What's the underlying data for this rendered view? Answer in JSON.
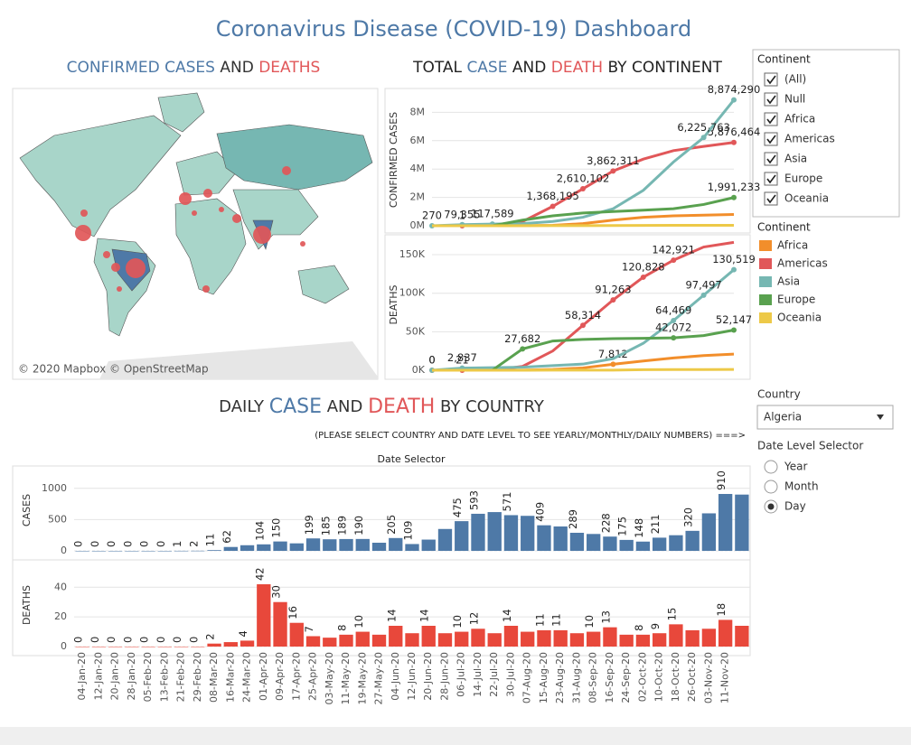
{
  "title": "Coronavirus Disease (COVID-19) Dashboard",
  "map": {
    "title": [
      {
        "text": "CONFIRMED CASES",
        "color": "#4e79a7"
      },
      {
        "text": "AND",
        "color": "#333333"
      },
      {
        "text": "DEATHS",
        "color": "#e15759"
      }
    ],
    "attribution": "© 2020 Mapbox © OpenStreetMap"
  },
  "continent_title": [
    {
      "text": "TOTAL",
      "color": "#222222"
    },
    {
      "text": "CASE",
      "color": "#4e79a7"
    },
    {
      "text": "AND",
      "color": "#222222"
    },
    {
      "text": "DEATH",
      "color": "#e15759"
    },
    {
      "text": "BY CONTINENT",
      "color": "#222222"
    }
  ],
  "country_title": [
    {
      "text": "DAILY",
      "color": "#333333"
    },
    {
      "text": "CASE",
      "color": "#4e79a7"
    },
    {
      "text": "AND",
      "color": "#333333"
    },
    {
      "text": "DEATH",
      "color": "#e15759"
    },
    {
      "text": "BY COUNTRY",
      "color": "#333333"
    }
  ],
  "instruction": "(PLEASE SELECT COUNTRY AND DATE LEVEL TO SEE YEARLY/MONTHLY/DAILY NUMBERS) ===>",
  "date_selector": "Date Selector",
  "chart_data": [
    {
      "type": "line",
      "y_label": "CONFIRMED CASES",
      "categories": [
        null,
        null,
        null,
        null,
        null,
        null,
        null,
        null,
        null,
        null,
        null
      ],
      "ylim": [
        0,
        9300000
      ],
      "yticks": [
        {
          "value": 0,
          "label": "0M"
        },
        {
          "value": 2000000,
          "label": "2M"
        },
        {
          "value": 4000000,
          "label": "4M"
        },
        {
          "value": 6000000,
          "label": "6M"
        },
        {
          "value": 8000000,
          "label": "8M"
        }
      ],
      "grid": true,
      "series": [
        {
          "name": "Africa",
          "color": "#f28e2b",
          "values": [
            0,
            0,
            0,
            5000,
            30000,
            150000,
            400000,
            600000,
            700000,
            750000,
            800000
          ],
          "value_labels": [
            null,
            null,
            null,
            null,
            null,
            null,
            null,
            null,
            null,
            null,
            null
          ]
        },
        {
          "name": "Americas",
          "color": "#e15759",
          "values": [
            0,
            1,
            20000,
            300000,
            1368195,
            2610102,
            3862311,
            4700000,
            5300000,
            5600000,
            5876464
          ],
          "value_labels": [
            null,
            "1",
            null,
            null,
            "1,368,195",
            "2,610,102",
            "3,862,311",
            null,
            null,
            null,
            "5,876,464"
          ]
        },
        {
          "name": "Asia",
          "color": "#76b7b2",
          "values": [
            270,
            79355,
            117589,
            150000,
            300000,
            600000,
            1200000,
            2500000,
            4500000,
            6225763,
            8874290
          ],
          "value_labels": [
            "270",
            "79,355",
            "117,589",
            null,
            null,
            null,
            null,
            null,
            null,
            "6,225,763",
            "8,874,290"
          ]
        },
        {
          "name": "Europe",
          "color": "#59a14f",
          "values": [
            0,
            0,
            2000,
            400000,
            700000,
            900000,
            1000000,
            1100000,
            1200000,
            1500000,
            1991233
          ],
          "value_labels": [
            null,
            null,
            null,
            null,
            null,
            null,
            null,
            null,
            null,
            null,
            "1,991,233"
          ]
        },
        {
          "name": "Oceania",
          "color": "#edc948",
          "values": [
            0,
            0,
            0,
            5000,
            8000,
            9000,
            15000,
            25000,
            28000,
            30000,
            32000
          ],
          "value_labels": [
            null,
            null,
            null,
            null,
            null,
            null,
            null,
            null,
            null,
            null,
            null
          ]
        }
      ]
    },
    {
      "type": "line",
      "y_label": "DEATHS",
      "categories": [
        null,
        null,
        null,
        null,
        null,
        null,
        null,
        null,
        null,
        null,
        null
      ],
      "ylim": [
        0,
        170000
      ],
      "yticks": [
        {
          "value": 0,
          "label": "0K"
        },
        {
          "value": 50000,
          "label": "50K"
        },
        {
          "value": 100000,
          "label": "100K"
        },
        {
          "value": 150000,
          "label": "150K"
        }
      ],
      "grid": true,
      "series": [
        {
          "name": "Africa",
          "color": "#f28e2b",
          "values": [
            0,
            0,
            0,
            200,
            1000,
            3000,
            7812,
            12000,
            16000,
            19000,
            21000
          ],
          "value_labels": [
            null,
            null,
            null,
            null,
            null,
            null,
            "7,812",
            null,
            null,
            null,
            null
          ]
        },
        {
          "name": "Americas",
          "color": "#e15759",
          "values": [
            0,
            21,
            200,
            5000,
            25000,
            58314,
            91263,
            120828,
            142921,
            160000,
            166000
          ],
          "value_labels": [
            "0",
            "21",
            null,
            null,
            null,
            "58,314",
            "91,263",
            "120,828",
            "142,921",
            null,
            null
          ]
        },
        {
          "name": "Asia",
          "color": "#76b7b2",
          "values": [
            0,
            2837,
            3300,
            4000,
            6000,
            8000,
            15000,
            35000,
            64469,
            97497,
            130519
          ],
          "value_labels": [
            "0",
            "2,837",
            null,
            null,
            null,
            null,
            null,
            null,
            "64,469",
            "97,497",
            "130,519"
          ]
        },
        {
          "name": "Europe",
          "color": "#59a14f",
          "values": [
            0,
            0,
            100,
            27682,
            38000,
            40000,
            41000,
            41500,
            42072,
            45000,
            52147
          ],
          "value_labels": [
            null,
            null,
            null,
            "27,682",
            null,
            null,
            null,
            null,
            "42,072",
            null,
            "52,147"
          ]
        },
        {
          "name": "Oceania",
          "color": "#edc948",
          "values": [
            0,
            0,
            0,
            50,
            100,
            120,
            150,
            800,
            900,
            950,
            1000
          ],
          "value_labels": [
            null,
            null,
            null,
            null,
            null,
            null,
            null,
            null,
            null,
            null,
            null
          ]
        }
      ]
    },
    {
      "type": "bar",
      "y_label": "CASES",
      "color": "#4e79a7",
      "categories": [
        "04-Jan-20",
        "12-Jan-20",
        "20-Jan-20",
        "28-Jan-20",
        "05-Feb-20",
        "13-Feb-20",
        "21-Feb-20",
        "29-Feb-20",
        "08-Mar-20",
        "16-Mar-20",
        "24-Mar-20",
        "01-Apr-20",
        "09-Apr-20",
        "17-Apr-20",
        "25-Apr-20",
        "03-May-20",
        "11-May-20",
        "19-May-20",
        "27-May-20",
        "04-Jun-20",
        "12-Jun-20",
        "20-Jun-20",
        "28-Jun-20",
        "06-Jul-20",
        "14-Jul-20",
        "22-Jul-20",
        "30-Jul-20",
        "07-Aug-20",
        "15-Aug-20",
        "23-Aug-20",
        "31-Aug-20",
        "08-Sep-20",
        "16-Sep-20",
        "24-Sep-20",
        "02-Oct-20",
        "10-Oct-20",
        "18-Oct-20",
        "26-Oct-20",
        "03-Nov-20",
        "11-Nov-20",
        null
      ],
      "values": [
        0,
        0,
        0,
        0,
        0,
        0,
        1,
        2,
        11,
        62,
        90,
        104,
        150,
        120,
        199,
        185,
        189,
        190,
        130,
        205,
        109,
        180,
        350,
        475,
        593,
        620,
        571,
        560,
        409,
        390,
        289,
        270,
        228,
        175,
        148,
        211,
        250,
        320,
        600,
        910,
        900
      ],
      "value_labels": [
        "0",
        "0",
        "0",
        "0",
        "0",
        "0",
        "1",
        "2",
        "11",
        "62",
        null,
        "104",
        "150",
        null,
        "199",
        "185",
        "189",
        "190",
        null,
        "205",
        "109",
        null,
        null,
        "475",
        "593",
        null,
        "571",
        null,
        "409",
        null,
        "289",
        null,
        "228",
        "175",
        "148",
        "211",
        null,
        "320",
        null,
        "910",
        null
      ],
      "ylim": [
        0,
        1300
      ],
      "yticks": [
        0,
        500,
        1000
      ],
      "grid": true
    },
    {
      "type": "bar",
      "y_label": "DEATHS",
      "color": "#e8483b",
      "categories": [
        "04-Jan-20",
        "12-Jan-20",
        "20-Jan-20",
        "28-Jan-20",
        "05-Feb-20",
        "13-Feb-20",
        "21-Feb-20",
        "29-Feb-20",
        "08-Mar-20",
        "16-Mar-20",
        "24-Mar-20",
        "01-Apr-20",
        "09-Apr-20",
        "17-Apr-20",
        "25-Apr-20",
        "03-May-20",
        "11-May-20",
        "19-May-20",
        "27-May-20",
        "04-Jun-20",
        "12-Jun-20",
        "20-Jun-20",
        "28-Jun-20",
        "06-Jul-20",
        "14-Jul-20",
        "22-Jul-20",
        "30-Jul-20",
        "07-Aug-20",
        "15-Aug-20",
        "23-Aug-20",
        "31-Aug-20",
        "08-Sep-20",
        "16-Sep-20",
        "24-Sep-20",
        "02-Oct-20",
        "10-Oct-20",
        "18-Oct-20",
        "26-Oct-20",
        "03-Nov-20",
        "11-Nov-20",
        null
      ],
      "values": [
        0,
        0,
        0,
        0,
        0,
        0,
        0,
        0,
        2,
        3,
        4,
        42,
        30,
        16,
        7,
        6,
        8,
        10,
        8,
        14,
        9,
        14,
        9,
        10,
        12,
        9,
        14,
        10,
        11,
        11,
        9,
        10,
        13,
        8,
        8,
        9,
        15,
        11,
        12,
        18,
        14
      ],
      "value_labels": [
        "0",
        "0",
        "0",
        "0",
        "0",
        "0",
        "0",
        "0",
        "2",
        null,
        "4",
        "42",
        "30",
        "16",
        "7",
        null,
        "8",
        "10",
        null,
        "14",
        null,
        "14",
        null,
        "10",
        "12",
        null,
        "14",
        null,
        "11",
        "11",
        null,
        "10",
        "13",
        null,
        "8",
        "9",
        "15",
        null,
        null,
        "18",
        null
      ],
      "ylim": [
        0,
        56
      ],
      "yticks": [
        0,
        20,
        40
      ],
      "grid": true
    }
  ],
  "filter": {
    "title": "Continent",
    "items": [
      "(All)",
      "Null",
      "Africa",
      "Americas",
      "Asia",
      "Europe",
      "Oceania"
    ],
    "checked": [
      true,
      true,
      true,
      true,
      true,
      true,
      true
    ]
  },
  "legend": {
    "title": "Continent"
  },
  "country": {
    "label": "Country",
    "selected": "Algeria"
  },
  "date_level": {
    "label": "Date Level Selector",
    "options": [
      "Year",
      "Month",
      "Day"
    ],
    "selected": 2
  }
}
